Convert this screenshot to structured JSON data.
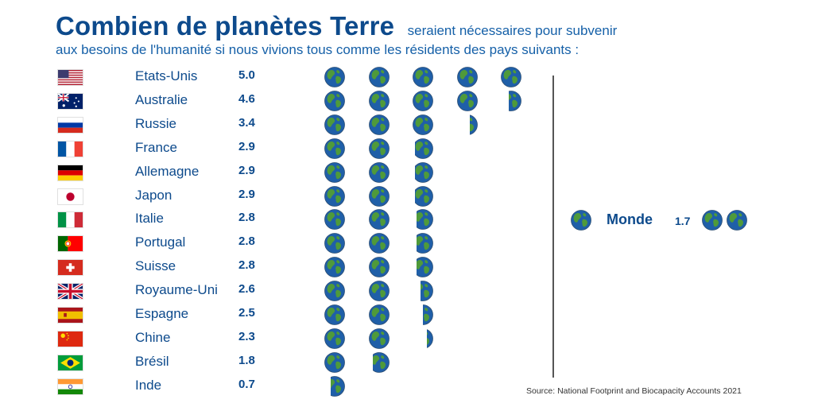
{
  "header": {
    "title": "Combien de planètes Terre",
    "title_rest": "seraient nécessaires pour subvenir",
    "subtitle": "aux besoins de l'humanité si nous vivions tous comme les résidents des pays suivants :"
  },
  "colors": {
    "title": "#0d4a8c",
    "ocean": "#1f5fa8",
    "land": "#4f9a3a"
  },
  "icon": "earth-globe-icon",
  "chart_data": {
    "type": "bar",
    "title": "Combien de planètes Terre",
    "categories": [
      "Etats-Unis",
      "Australie",
      "Russie",
      "France",
      "Allemagne",
      "Japon",
      "Italie",
      "Portugal",
      "Suisse",
      "Royaume-Uni",
      "Espagne",
      "Chine",
      "Brésil",
      "Inde"
    ],
    "values": [
      5.0,
      4.6,
      3.4,
      2.9,
      2.9,
      2.9,
      2.8,
      2.8,
      2.8,
      2.6,
      2.5,
      2.3,
      1.8,
      0.7
    ],
    "value_labels": [
      "5.0",
      "4.6",
      "3.4",
      "2.9",
      "2.9",
      "2.9",
      "2.8",
      "2.8",
      "2.8",
      "2.6",
      "2.5",
      "2.3",
      "1.8",
      "0.7"
    ],
    "flags": [
      "us",
      "au",
      "ru",
      "fr",
      "de",
      "jp",
      "it",
      "pt",
      "ch",
      "gb",
      "es",
      "cn",
      "br",
      "in"
    ],
    "reference": {
      "label": "Monde",
      "value": 1.7,
      "value_label": "1.7"
    }
  },
  "source": "Source: National Footprint and Biocapacity Accounts 2021"
}
